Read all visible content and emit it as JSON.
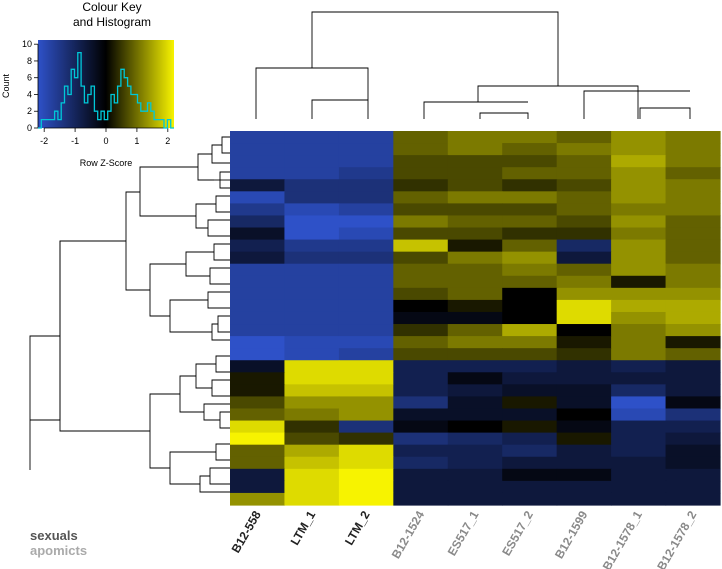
{
  "chart_data": {
    "type": "heatmap",
    "key": {
      "title_line1": "Colour Key",
      "title_line2": "and Histogram",
      "xlabel": "Row Z-Score",
      "ylabel": "Count",
      "xticks": [
        "-2",
        "-1",
        "0",
        "1",
        "2"
      ],
      "yticks": [
        "0",
        "2",
        "4",
        "6",
        "8",
        "10"
      ],
      "xlim": [
        -2.2,
        2.2
      ],
      "ylim": [
        0,
        10.5
      ],
      "histogram": [
        0,
        1,
        1,
        1,
        1,
        2,
        1,
        3,
        5,
        4,
        7,
        6,
        9,
        5,
        3,
        4,
        5,
        2,
        1,
        2,
        1,
        2,
        4,
        3,
        5,
        7,
        6,
        5,
        4,
        4,
        3,
        2,
        2,
        3,
        2,
        1,
        1,
        1,
        0,
        1,
        0
      ]
    },
    "colors": {
      "low": "#2e51c8",
      "mid": "#000000",
      "high": "#f7f300",
      "histogram_line": "#00c8d8"
    },
    "columns": [
      {
        "label": "B12-558",
        "group": "sexuals"
      },
      {
        "label": "LTM_1",
        "group": "sexuals"
      },
      {
        "label": "LTM_2",
        "group": "sexuals"
      },
      {
        "label": "B12-1524",
        "group": "apomicts"
      },
      {
        "label": "ES517_1",
        "group": "apomicts"
      },
      {
        "label": "ES517_2",
        "group": "apomicts"
      },
      {
        "label": "B12-1599",
        "group": "apomicts"
      },
      {
        "label": "B12-1578_1",
        "group": "apomicts"
      },
      {
        "label": "B12-1578_2",
        "group": "apomicts"
      }
    ],
    "group_colors": {
      "sexuals": "#222222",
      "apomicts": "#8a8a8a"
    },
    "values": [
      [
        -0.8,
        -0.8,
        -0.8,
        0.4,
        0.5,
        0.5,
        0.4,
        0.6,
        0.5
      ],
      [
        -0.8,
        -0.8,
        -0.8,
        0.4,
        0.5,
        0.4,
        0.5,
        0.6,
        0.5
      ],
      [
        -0.8,
        -0.8,
        -0.8,
        0.3,
        0.3,
        0.3,
        0.4,
        0.7,
        0.5
      ],
      [
        -0.8,
        -0.8,
        -0.7,
        0.3,
        0.3,
        0.4,
        0.4,
        0.6,
        0.4
      ],
      [
        -0.3,
        -0.6,
        -0.6,
        0.2,
        0.3,
        0.2,
        0.3,
        0.6,
        0.5
      ],
      [
        -0.9,
        -0.6,
        -0.6,
        0.4,
        0.5,
        0.5,
        0.4,
        0.6,
        0.5
      ],
      [
        -0.7,
        -0.9,
        -0.8,
        0.3,
        0.3,
        0.3,
        0.4,
        0.5,
        0.5
      ],
      [
        -0.5,
        -1.1,
        -1.1,
        0.5,
        0.4,
        0.4,
        0.3,
        0.6,
        0.4
      ],
      [
        -0.2,
        -1.1,
        -0.9,
        0.3,
        0.3,
        0.2,
        0.2,
        0.5,
        0.4
      ],
      [
        -0.4,
        -0.7,
        -0.7,
        0.8,
        0.1,
        0.4,
        -0.5,
        0.6,
        0.4
      ],
      [
        -0.3,
        -0.6,
        -0.6,
        0.3,
        0.5,
        0.6,
        -0.3,
        0.6,
        0.4
      ],
      [
        -0.8,
        -0.8,
        -0.8,
        0.4,
        0.4,
        0.5,
        0.4,
        0.6,
        0.5
      ],
      [
        -0.8,
        -0.8,
        -0.8,
        0.4,
        0.4,
        0.4,
        0.5,
        0.1,
        0.5
      ],
      [
        -0.8,
        -0.8,
        -0.8,
        0.3,
        0.4,
        0.0,
        0.6,
        0.6,
        0.6
      ],
      [
        -0.8,
        -0.8,
        -0.8,
        0.0,
        0.1,
        0.0,
        0.9,
        0.7,
        0.7
      ],
      [
        -0.8,
        -0.8,
        -0.8,
        -0.1,
        -0.1,
        0.0,
        0.9,
        0.6,
        0.7
      ],
      [
        -0.8,
        -0.8,
        -0.8,
        0.2,
        0.4,
        0.7,
        0.0,
        0.5,
        0.6
      ],
      [
        -1.1,
        -0.9,
        -0.9,
        0.4,
        0.5,
        0.5,
        0.1,
        0.5,
        0.1
      ],
      [
        -1.2,
        -0.9,
        -0.8,
        0.3,
        0.3,
        0.3,
        0.2,
        0.5,
        0.4
      ],
      [
        -0.2,
        0.9,
        0.9,
        -0.4,
        -0.4,
        -0.4,
        -0.3,
        -0.4,
        -0.3
      ],
      [
        0.1,
        0.9,
        0.9,
        -0.4,
        -0.1,
        -0.3,
        -0.3,
        -0.3,
        -0.3
      ],
      [
        0.1,
        0.8,
        0.8,
        -0.4,
        -0.3,
        -0.2,
        -0.2,
        -0.5,
        -0.3
      ],
      [
        0.3,
        0.6,
        0.6,
        -0.6,
        -0.2,
        0.1,
        -0.2,
        -1.0,
        -0.1
      ],
      [
        0.4,
        0.5,
        0.6,
        -0.2,
        -0.2,
        -0.2,
        0.0,
        -0.9,
        -0.6
      ],
      [
        0.9,
        0.2,
        -0.6,
        -0.1,
        0.0,
        0.1,
        -0.1,
        -0.4,
        -0.4
      ],
      [
        1.0,
        0.3,
        0.2,
        -0.6,
        -0.5,
        -0.4,
        0.1,
        -0.4,
        -0.3
      ],
      [
        0.4,
        0.7,
        0.9,
        -0.4,
        -0.4,
        -0.5,
        -0.3,
        -0.4,
        -0.2
      ],
      [
        0.4,
        0.8,
        0.9,
        -0.5,
        -0.4,
        -0.3,
        -0.3,
        -0.3,
        -0.2
      ],
      [
        -0.3,
        0.9,
        1.0,
        -0.3,
        -0.3,
        -0.1,
        -0.1,
        -0.3,
        -0.3
      ],
      [
        -0.3,
        0.9,
        1.0,
        -0.3,
        -0.3,
        -0.3,
        -0.3,
        -0.3,
        -0.3
      ],
      [
        0.6,
        0.9,
        1.0,
        -0.3,
        -0.3,
        -0.3,
        -0.3,
        -0.3,
        -0.3
      ]
    ],
    "legend": {
      "sexuals": "sexuals",
      "apomicts": "apomicts"
    }
  }
}
